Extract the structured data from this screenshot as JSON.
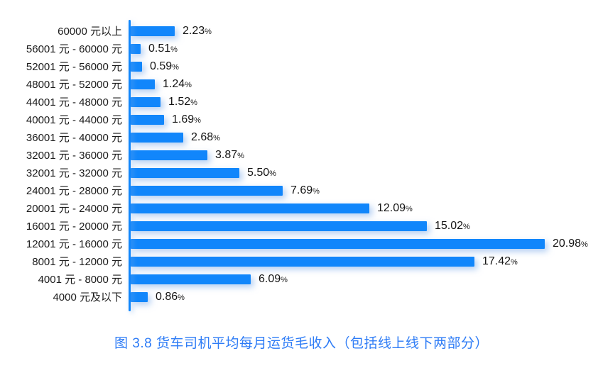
{
  "chart_data": {
    "type": "bar",
    "orientation": "horizontal",
    "title": "图 3.8  货车司机平均每月运货毛收入（包括线上线下两部分）",
    "xlabel": "",
    "ylabel": "",
    "xlim": [
      0,
      21
    ],
    "grid": false,
    "legend": null,
    "unit_suffix": "%",
    "categories": [
      "60000 元以上",
      "56001 元 - 60000 元",
      "52001 元 - 56000 元",
      "48001 元 - 52000 元",
      "44001 元 - 48000 元",
      "40001 元 - 44000 元",
      "36001 元 - 40000 元",
      "32001 元 - 36000 元",
      "32001 元 - 32000 元",
      "24001 元 - 28000 元",
      "20001 元 - 24000 元",
      "16001 元 - 20000 元",
      "12001 元 - 16000 元",
      "8001 元 - 12000 元",
      "4001 元 - 8000 元",
      "4000 元及以下"
    ],
    "values": [
      2.23,
      0.51,
      0.59,
      1.24,
      1.52,
      1.69,
      2.68,
      3.87,
      5.5,
      7.69,
      12.09,
      15.02,
      20.98,
      17.42,
      6.09,
      0.86
    ],
    "value_labels": [
      "2.23",
      "0.51",
      "0.59",
      "1.24",
      "1.52",
      "1.69",
      "2.68",
      "3.87",
      "5.50",
      "7.69",
      "12.09",
      "15.02",
      "20.98",
      "17.42",
      "6.09",
      "0.86"
    ]
  },
  "style": {
    "bar_color": "#1186fb",
    "axis_color": "#1186fb",
    "title_color": "#2e7cf6",
    "label_color": "#1b1b1b"
  }
}
